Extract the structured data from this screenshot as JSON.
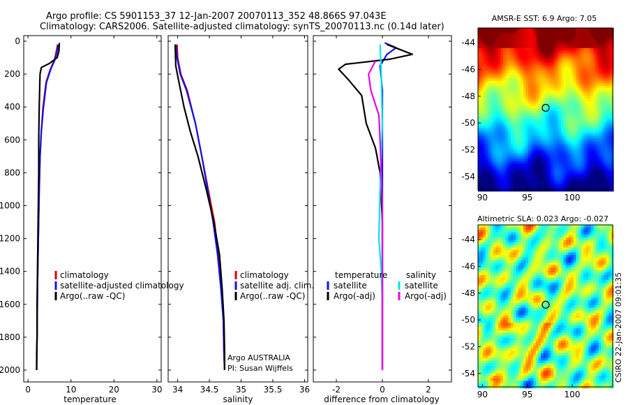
{
  "title": {
    "line1": "Argo profile: CS 5901153_37 12-Jan-2007 20070113_352 48.866S 97.043E",
    "line2": "Climatology: CARS2006. Satellite-adjusted climatology: synTS_20070113.nc (0.14d later)"
  },
  "credit": "CSIRO 22-Jan-2007 09:01:35",
  "colors": {
    "red": "#e00000",
    "blue": "#1010ee",
    "black": "#000000",
    "cyan": "#00e6e6",
    "magenta": "#ee00ee"
  },
  "chart_data": [
    {
      "id": "temperature",
      "type": "line",
      "xlabel": "temperature",
      "xlim": [
        -1,
        31
      ],
      "ylim": [
        2050,
        0
      ],
      "xticks": [
        0,
        10,
        20,
        30
      ],
      "yticks": [
        0,
        200,
        400,
        600,
        800,
        1000,
        1200,
        1400,
        1600,
        1800,
        2000
      ],
      "legend": {
        "position": "lower-middle",
        "entries": [
          {
            "label": "climatology",
            "color": "#e00000"
          },
          {
            "label": "satellite-adjusted climatology",
            "color": "#1010ee"
          },
          {
            "label": "Argo(..raw -QC)",
            "color": "#000000"
          }
        ]
      },
      "series": [
        {
          "name": "climatology",
          "color": "#e00000",
          "points": [
            [
              6.9,
              20
            ],
            [
              6.6,
              60
            ],
            [
              6.2,
              110
            ],
            [
              5.2,
              170
            ],
            [
              4.2,
              250
            ],
            [
              3.5,
              400
            ],
            [
              3.1,
              550
            ],
            [
              2.8,
              700
            ],
            [
              2.6,
              900
            ],
            [
              2.4,
              1200
            ],
            [
              2.2,
              1500
            ],
            [
              2.1,
              1800
            ],
            [
              2.0,
              1900
            ],
            [
              2.0,
              2000
            ]
          ]
        },
        {
          "name": "satellite-adjusted climatology",
          "color": "#1010ee",
          "points": [
            [
              7.0,
              20
            ],
            [
              6.8,
              60
            ],
            [
              6.3,
              110
            ],
            [
              5.3,
              170
            ],
            [
              4.3,
              250
            ],
            [
              3.6,
              400
            ],
            [
              3.1,
              550
            ],
            [
              2.8,
              700
            ],
            [
              2.6,
              900
            ],
            [
              2.4,
              1200
            ],
            [
              2.2,
              1500
            ],
            [
              2.1,
              1800
            ],
            [
              2.0,
              1950
            ],
            [
              2.0,
              2000
            ]
          ]
        },
        {
          "name": "Argo(..raw -QC)",
          "color": "#000000",
          "points": [
            [
              7.3,
              10
            ],
            [
              7.2,
              60
            ],
            [
              6.8,
              100
            ],
            [
              5.0,
              135
            ],
            [
              3.1,
              160
            ],
            [
              2.8,
              200
            ],
            [
              2.6,
              400
            ],
            [
              2.5,
              600
            ],
            [
              2.5,
              800
            ],
            [
              2.4,
              1000
            ],
            [
              2.3,
              1200
            ],
            [
              2.2,
              1400
            ],
            [
              2.1,
              1600
            ],
            [
              2.1,
              1800
            ],
            [
              2.0,
              2000
            ]
          ]
        }
      ]
    },
    {
      "id": "salinity",
      "type": "line",
      "xlabel": "salinity",
      "xlim": [
        33.85,
        36.05
      ],
      "ylim": [
        2050,
        0
      ],
      "xticks": [
        34,
        34.5,
        35,
        35.5,
        36
      ],
      "yticks": [
        0,
        200,
        400,
        600,
        800,
        1000,
        1200,
        1400,
        1600,
        1800,
        2000
      ],
      "legend": {
        "position": "lower-right",
        "entries": [
          {
            "label": "climatology",
            "color": "#e00000"
          },
          {
            "label": "satellite adj. clim.",
            "color": "#1010ee"
          },
          {
            "label": "Argo(..raw -QC)",
            "color": "#000000"
          }
        ]
      },
      "annotation": [
        "Argo AUSTRALIA",
        "PI: Susan Wijffels"
      ],
      "series": [
        {
          "name": "climatology",
          "color": "#e00000",
          "points": [
            [
              33.99,
              20
            ],
            [
              34.0,
              100
            ],
            [
              34.05,
              200
            ],
            [
              34.15,
              300
            ],
            [
              34.28,
              500
            ],
            [
              34.38,
              700
            ],
            [
              34.48,
              900
            ],
            [
              34.58,
              1100
            ],
            [
              34.64,
              1300
            ],
            [
              34.69,
              1500
            ],
            [
              34.72,
              1700
            ],
            [
              34.73,
              1900
            ],
            [
              34.74,
              2000
            ]
          ]
        },
        {
          "name": "satellite adj. clim.",
          "color": "#1010ee",
          "points": [
            [
              33.97,
              20
            ],
            [
              33.99,
              100
            ],
            [
              34.04,
              200
            ],
            [
              34.14,
              300
            ],
            [
              34.28,
              500
            ],
            [
              34.38,
              700
            ],
            [
              34.47,
              900
            ],
            [
              34.56,
              1100
            ],
            [
              34.63,
              1300
            ],
            [
              34.68,
              1500
            ],
            [
              34.72,
              1700
            ],
            [
              34.73,
              1900
            ],
            [
              34.74,
              2000
            ]
          ]
        },
        {
          "name": "Argo(..raw -QC)",
          "color": "#000000",
          "points": [
            [
              33.96,
              20
            ],
            [
              33.97,
              150
            ],
            [
              34.02,
              250
            ],
            [
              34.1,
              400
            ],
            [
              34.2,
              550
            ],
            [
              34.32,
              700
            ],
            [
              34.45,
              900
            ],
            [
              34.57,
              1100
            ],
            [
              34.66,
              1300
            ],
            [
              34.7,
              1500
            ],
            [
              34.73,
              1700
            ],
            [
              34.74,
              1900
            ],
            [
              34.74,
              2000
            ]
          ]
        }
      ]
    },
    {
      "id": "difference",
      "type": "line",
      "xlabel": "difference from climatology",
      "xlim": [
        -3,
        3
      ],
      "ylim": [
        2050,
        0
      ],
      "xticks": [
        -2,
        0,
        2
      ],
      "yticks": [
        0,
        200,
        400,
        600,
        800,
        1000,
        1200,
        1400,
        1600,
        1800,
        2000
      ],
      "legend": {
        "position": "lower-middle",
        "groups": [
          {
            "header": "temperature",
            "entries": [
              {
                "label": "satellite",
                "color": "#1010ee"
              },
              {
                "label": "Argo(-adj)",
                "color": "#000000"
              }
            ]
          },
          {
            "header": "salinity",
            "entries": [
              {
                "label": "satellite",
                "color": "#00e6e6"
              },
              {
                "label": "Argo(-adj)",
                "color": "#ee00ee"
              }
            ]
          }
        ]
      },
      "series": [
        {
          "name": "temperature satellite",
          "color": "#1010ee",
          "points": [
            [
              0.1,
              10
            ],
            [
              0.6,
              40
            ],
            [
              0.2,
              80
            ],
            [
              -0.1,
              150
            ],
            [
              0.0,
              300
            ],
            [
              0.0,
              600
            ],
            [
              0.0,
              1000
            ],
            [
              0.0,
              1500
            ],
            [
              0.0,
              2000
            ]
          ]
        },
        {
          "name": "temperature Argo(-adj)",
          "color": "#000000",
          "points": [
            [
              0.2,
              20
            ],
            [
              1.3,
              80
            ],
            [
              0.3,
              110
            ],
            [
              -1.6,
              140
            ],
            [
              -1.9,
              170
            ],
            [
              -1.5,
              230
            ],
            [
              -0.9,
              330
            ],
            [
              -0.7,
              500
            ],
            [
              -0.3,
              650
            ],
            [
              -0.1,
              800
            ],
            [
              0.0,
              1100
            ],
            [
              0.0,
              1500
            ],
            [
              0.0,
              2000
            ]
          ]
        },
        {
          "name": "salinity satellite",
          "color": "#00e6e6",
          "points": [
            [
              -0.1,
              20
            ],
            [
              -0.05,
              200
            ],
            [
              0.0,
              500
            ],
            [
              -0.1,
              900
            ],
            [
              -0.15,
              1200
            ],
            [
              -0.05,
              1400
            ],
            [
              0.0,
              1600
            ],
            [
              0.0,
              2000
            ]
          ]
        },
        {
          "name": "salinity Argo(-adj)",
          "color": "#ee00ee",
          "points": [
            [
              -0.3,
              120
            ],
            [
              -0.6,
              200
            ],
            [
              -0.5,
              300
            ],
            [
              -0.15,
              450
            ],
            [
              -0.1,
              600
            ],
            [
              0.0,
              1000
            ],
            [
              0.0,
              1500
            ],
            [
              0.0,
              2000
            ]
          ]
        }
      ]
    },
    {
      "id": "sst-map",
      "type": "heatmap",
      "title": "AMSR-E SST: 6.9 Argo: 7.05",
      "xlim": [
        89.5,
        104.5
      ],
      "ylim": [
        -55,
        -42.9
      ],
      "xticks": [
        90,
        95,
        100
      ],
      "yticks": [
        -44,
        -46,
        -48,
        -50,
        -52,
        -54
      ],
      "marker": {
        "lon": 97.043,
        "lat": -48.866
      },
      "colormap": "jet-like"
    },
    {
      "id": "sla-map",
      "type": "heatmap",
      "title": "Altimetric SLA: 0.023 Argo: -0.027",
      "xlim": [
        89.5,
        104.5
      ],
      "ylim": [
        -55,
        -42.9
      ],
      "xticks": [
        90,
        95,
        100
      ],
      "yticks": [
        -44,
        -46,
        -48,
        -50,
        -52,
        -54
      ],
      "marker": {
        "lon": 97.043,
        "lat": -48.866
      },
      "colormap": "jet-like"
    }
  ]
}
